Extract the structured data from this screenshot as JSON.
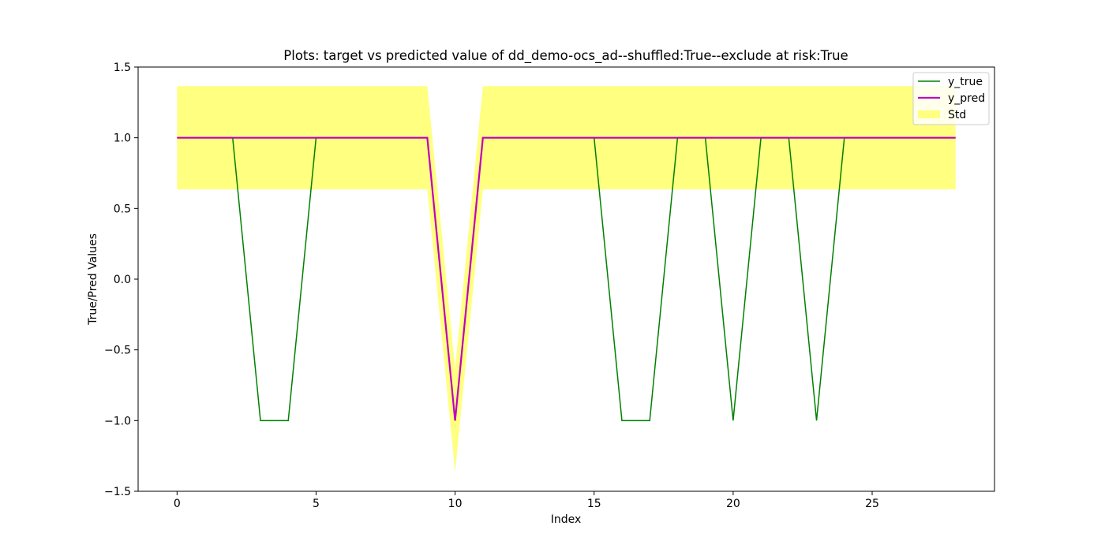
{
  "chart_data": {
    "type": "line",
    "title": "Plots: target vs predicted value of dd_demo-ocs_ad--shuffled:True--exclude at risk:True",
    "xlabel": "Index",
    "ylabel": "True/Pred Values",
    "xlim": [
      -1.4,
      29.4
    ],
    "ylim": [
      -1.5,
      1.5
    ],
    "x_ticks": [
      0,
      5,
      10,
      15,
      20,
      25
    ],
    "x_tick_labels": [
      "0",
      "5",
      "10",
      "15",
      "20",
      "25"
    ],
    "y_ticks": [
      -1.5,
      -1.0,
      -0.5,
      0.0,
      0.5,
      1.0,
      1.5
    ],
    "y_tick_labels": [
      "−1.5",
      "−1.0",
      "−0.5",
      "0.0",
      "0.5",
      "1.0",
      "1.5"
    ],
    "grid": false,
    "legend_position": "top-right",
    "x": [
      0,
      1,
      2,
      3,
      4,
      5,
      6,
      7,
      8,
      9,
      10,
      11,
      12,
      13,
      14,
      15,
      16,
      17,
      18,
      19,
      20,
      21,
      22,
      23,
      24,
      25,
      26,
      27,
      28
    ],
    "series": [
      {
        "name": "y_true",
        "color": "#008000",
        "values": [
          1,
          1,
          1,
          -1,
          -1,
          1,
          1,
          1,
          1,
          1,
          -1,
          1,
          1,
          1,
          1,
          1,
          -1,
          -1,
          1,
          1,
          -1,
          1,
          1,
          -1,
          1,
          1,
          1,
          1,
          1
        ]
      },
      {
        "name": "y_pred",
        "color": "#bf00bf",
        "values": [
          1,
          1,
          1,
          1,
          1,
          1,
          1,
          1,
          1,
          1,
          -1,
          1,
          1,
          1,
          1,
          1,
          1,
          1,
          1,
          1,
          1,
          1,
          1,
          1,
          1,
          1,
          1,
          1,
          1
        ]
      }
    ],
    "band": {
      "name": "Std",
      "color": "#ffff80",
      "lower": [
        0.635,
        0.635,
        0.635,
        0.635,
        0.635,
        0.635,
        0.635,
        0.635,
        0.635,
        0.635,
        -1.365,
        0.635,
        0.635,
        0.635,
        0.635,
        0.635,
        0.635,
        0.635,
        0.635,
        0.635,
        0.635,
        0.635,
        0.635,
        0.635,
        0.635,
        0.635,
        0.635,
        0.635,
        0.635
      ],
      "upper": [
        1.365,
        1.365,
        1.365,
        1.365,
        1.365,
        1.365,
        1.365,
        1.365,
        1.365,
        1.365,
        -0.635,
        1.365,
        1.365,
        1.365,
        1.365,
        1.365,
        1.365,
        1.365,
        1.365,
        1.365,
        1.365,
        1.365,
        1.365,
        1.365,
        1.365,
        1.365,
        1.365,
        1.365,
        1.365
      ]
    }
  }
}
